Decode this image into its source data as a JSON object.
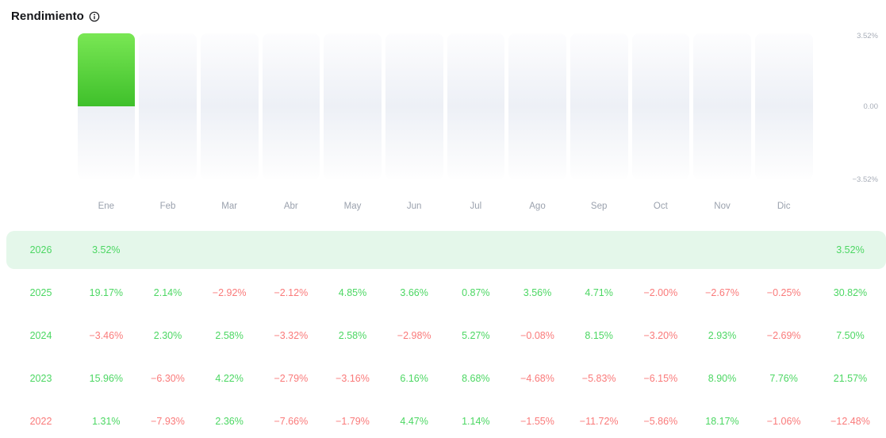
{
  "header": {
    "title": "Rendimiento"
  },
  "colors": {
    "positive": "#4cd763",
    "negative": "#fa7a7a",
    "highlight_bg": "#e4f7ea",
    "month_text": "#9aa1ad",
    "axis_text": "#a7adb8",
    "title_text": "#141519",
    "col_grad_mid": "#edf0f6",
    "bar_top": "#79e754",
    "bar_bottom": "#3fc02b"
  },
  "chart_data": {
    "type": "bar",
    "title": "Rendimiento",
    "categories": [
      "Ene",
      "Feb",
      "Mar",
      "Abr",
      "May",
      "Jun",
      "Jul",
      "Ago",
      "Sep",
      "Oct",
      "Nov",
      "Dic"
    ],
    "series": [
      {
        "name": "2026",
        "values": [
          3.52,
          null,
          null,
          null,
          null,
          null,
          null,
          null,
          null,
          null,
          null,
          null
        ]
      }
    ],
    "ylim": [
      -3.52,
      3.52
    ],
    "y_ticks": [
      "3.52%",
      "0.00",
      "−3.52%"
    ],
    "grid": false,
    "legend": false,
    "y_axis_position": "right"
  },
  "table": {
    "rows": [
      {
        "year": "2026",
        "highlighted": true,
        "cells": [
          "3.52%",
          "",
          "",
          "",
          "",
          "",
          "",
          "",
          "",
          "",
          "",
          ""
        ],
        "total": "3.52%"
      },
      {
        "year": "2025",
        "highlighted": false,
        "cells": [
          "19.17%",
          "2.14%",
          "-2.92%",
          "-2.12%",
          "4.85%",
          "3.66%",
          "0.87%",
          "3.56%",
          "4.71%",
          "-2.00%",
          "-2.67%",
          "-0.25%"
        ],
        "total": "30.82%"
      },
      {
        "year": "2024",
        "highlighted": false,
        "cells": [
          "-3.46%",
          "2.30%",
          "2.58%",
          "-3.32%",
          "2.58%",
          "-2.98%",
          "5.27%",
          "-0.08%",
          "8.15%",
          "-3.20%",
          "2.93%",
          "-2.69%"
        ],
        "total": "7.50%"
      },
      {
        "year": "2023",
        "highlighted": false,
        "cells": [
          "15.96%",
          "-6.30%",
          "4.22%",
          "-2.79%",
          "-3.16%",
          "6.16%",
          "8.68%",
          "-4.68%",
          "-5.83%",
          "-6.15%",
          "8.90%",
          "7.76%"
        ],
        "total": "21.57%"
      },
      {
        "year": "2022",
        "highlighted": false,
        "cells": [
          "1.31%",
          "-7.93%",
          "2.36%",
          "-7.66%",
          "-1.79%",
          "4.47%",
          "1.14%",
          "-1.55%",
          "-11.72%",
          "-5.86%",
          "18.17%",
          "-1.06%"
        ],
        "total": "-12.48%"
      }
    ]
  }
}
